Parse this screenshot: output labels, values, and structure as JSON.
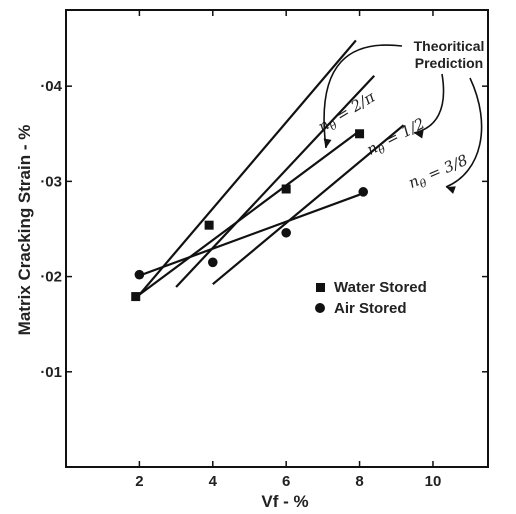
{
  "chart_data": {
    "type": "scatter",
    "title": "",
    "xlabel": "Vf  - %",
    "ylabel": "Matrix Cracking Strain - %",
    "xlim": [
      0,
      11.5
    ],
    "ylim": [
      0,
      0.048
    ],
    "x_ticks": [
      {
        "value": 2,
        "label": "2"
      },
      {
        "value": 4,
        "label": "4"
      },
      {
        "value": 6,
        "label": "6"
      },
      {
        "value": 8,
        "label": "8"
      },
      {
        "value": 10,
        "label": "10"
      }
    ],
    "y_ticks": [
      {
        "value": 0.01,
        "label": "·01"
      },
      {
        "value": 0.02,
        "label": "·02"
      },
      {
        "value": 0.03,
        "label": "·03"
      },
      {
        "value": 0.04,
        "label": "·04"
      }
    ],
    "grid": false,
    "legend": {
      "position": "center-right",
      "entries": [
        {
          "label": "Water Stored",
          "marker": "square"
        },
        {
          "label": "Air Stored",
          "marker": "circle"
        }
      ]
    },
    "series": [
      {
        "name": "Water Stored",
        "marker": "square",
        "points": [
          [
            1.9,
            0.0179
          ],
          [
            3.9,
            0.0254
          ],
          [
            6.0,
            0.0292
          ],
          [
            8.0,
            0.035
          ]
        ]
      },
      {
        "name": "Air Stored",
        "marker": "circle",
        "points": [
          [
            2.0,
            0.0202
          ],
          [
            4.0,
            0.0215
          ],
          [
            6.0,
            0.0246
          ],
          [
            8.1,
            0.0289
          ]
        ]
      }
    ],
    "fit_lines": [
      {
        "series": "Water Stored",
        "x": [
          2.0,
          8.0
        ],
        "y": [
          0.0181,
          0.0353
        ]
      },
      {
        "series": "Air Stored",
        "x": [
          2.0,
          8.0
        ],
        "y": [
          0.0201,
          0.0286
        ]
      }
    ],
    "theory_lines": [
      {
        "label_main": "n",
        "label_sub": "θ",
        "label_value": "= 2/π",
        "x": [
          2.0,
          7.9
        ],
        "y": [
          0.0181,
          0.0448
        ]
      },
      {
        "label_main": "n",
        "label_sub": "θ",
        "label_value": "= 1/2",
        "x": [
          3.0,
          8.4
        ],
        "y": [
          0.0189,
          0.0411
        ]
      },
      {
        "label_main": "n",
        "label_sub": "θ",
        "label_value": "= 3/8",
        "x": [
          4.0,
          9.2
        ],
        "y": [
          0.0192,
          0.0359
        ]
      }
    ],
    "annotation": {
      "line1": "Theoritical",
      "line2": "Prediction"
    }
  }
}
